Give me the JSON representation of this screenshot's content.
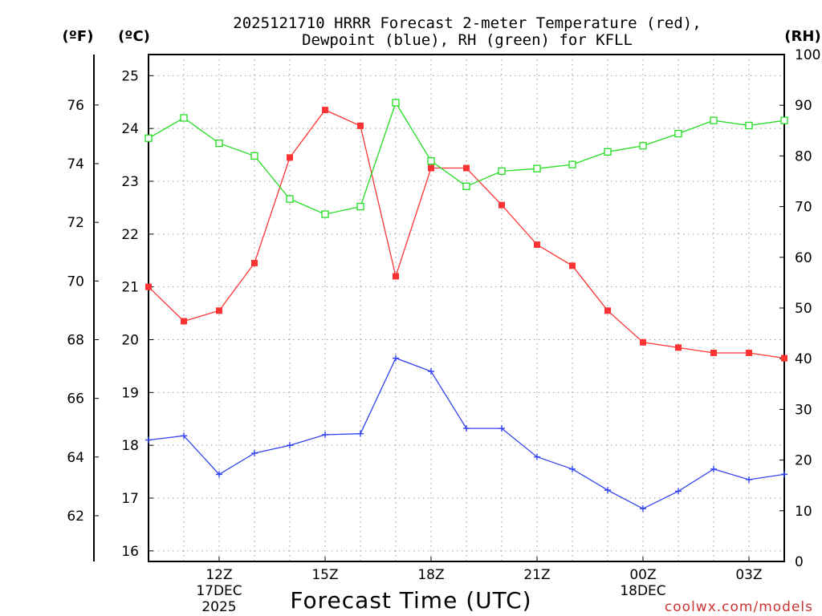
{
  "chart_data": {
    "type": "line",
    "title_line1": "2025121710 HRRR Forecast 2-meter Temperature (red),",
    "title_line2": "Dewpoint (blue), RH (green) for KFLL",
    "left_outer_axis_label": "(ºF)",
    "left_inner_axis_label": "(ºC)",
    "right_axis_label": "(RH)",
    "xlabel": "Forecast Time (UTC)",
    "credit": "coolwx.com/models",
    "x_hours": [
      10,
      11,
      12,
      13,
      14,
      15,
      16,
      17,
      18,
      19,
      20,
      21,
      22,
      23,
      24,
      25,
      26,
      27,
      28
    ],
    "x_range": [
      10,
      28
    ],
    "x_ticks": [
      {
        "hour": 12,
        "label": "12Z",
        "sub1": "17DEC",
        "sub2": "2025"
      },
      {
        "hour": 15,
        "label": "15Z",
        "sub1": "",
        "sub2": ""
      },
      {
        "hour": 18,
        "label": "18Z",
        "sub1": "",
        "sub2": ""
      },
      {
        "hour": 21,
        "label": "21Z",
        "sub1": "",
        "sub2": ""
      },
      {
        "hour": 24,
        "label": "00Z",
        "sub1": "18DEC",
        "sub2": ""
      },
      {
        "hour": 27,
        "label": "03Z",
        "sub1": "",
        "sub2": ""
      }
    ],
    "celsius_range": [
      15.8,
      25.4
    ],
    "celsius_ticks": [
      "16",
      "17",
      "18",
      "19",
      "20",
      "21",
      "22",
      "23",
      "24",
      "25"
    ],
    "fahrenheit_ticks": [
      "62",
      "64",
      "66",
      "68",
      "70",
      "72",
      "74",
      "76"
    ],
    "rh_range": [
      0,
      100
    ],
    "rh_ticks": [
      "0",
      "10",
      "20",
      "30",
      "40",
      "50",
      "60",
      "70",
      "80",
      "90",
      "100"
    ],
    "series": [
      {
        "name": "2-meter Temperature",
        "unit": "C",
        "color": "#ff3333",
        "marker": "filled-square",
        "values": [
          21.0,
          20.35,
          20.55,
          21.45,
          23.45,
          24.35,
          24.05,
          21.2,
          23.25,
          23.25,
          22.55,
          21.8,
          21.4,
          20.55,
          19.95,
          19.85,
          19.75,
          19.75,
          19.65
        ]
      },
      {
        "name": "Dewpoint",
        "unit": "C",
        "color": "#3344ee",
        "marker": "plus",
        "values": [
          18.1,
          18.18,
          17.45,
          17.85,
          18.0,
          18.2,
          18.22,
          19.65,
          19.4,
          18.32,
          18.32,
          17.78,
          17.55,
          17.15,
          16.8,
          17.13,
          17.55,
          17.35,
          17.45
        ]
      },
      {
        "name": "Relative Humidity",
        "unit": "%",
        "color": "#22dd22",
        "marker": "open-square",
        "values": [
          83.5,
          87.5,
          82.5,
          80.0,
          71.5,
          68.5,
          70.0,
          90.5,
          79.0,
          74.0,
          77.0,
          77.5,
          78.3,
          80.8,
          82.0,
          84.4,
          87.0,
          86.0,
          87.0
        ]
      }
    ]
  }
}
